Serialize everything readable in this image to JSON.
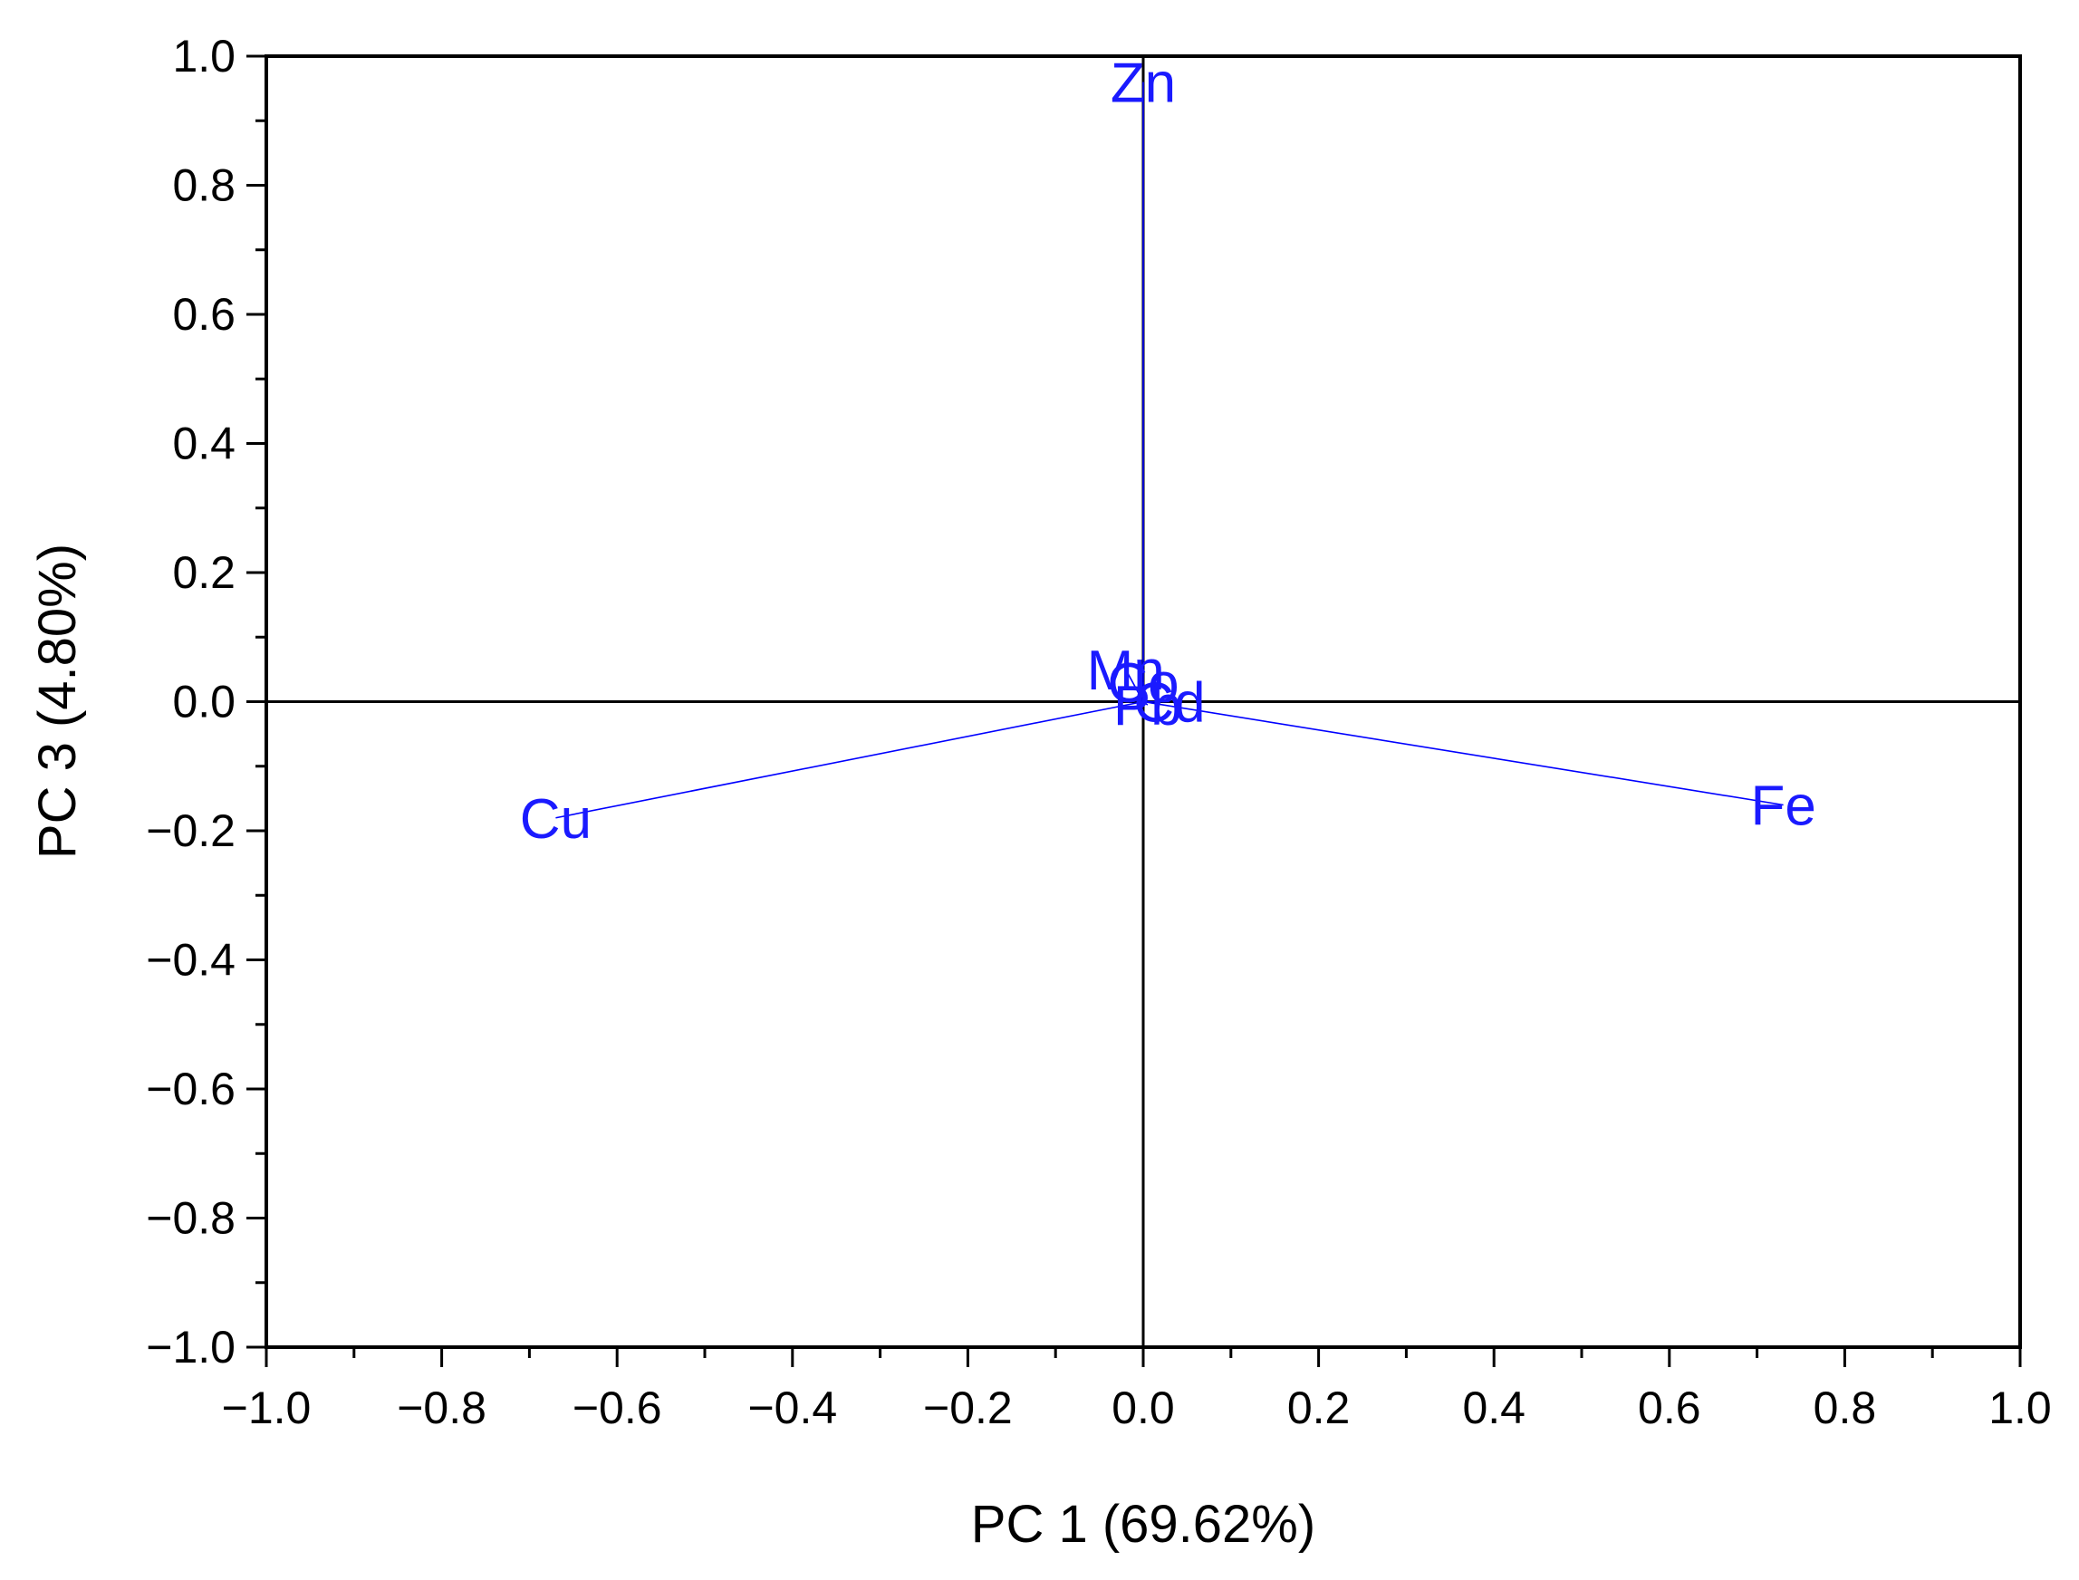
{
  "chart_data": {
    "type": "scatter",
    "subtype": "pca-loading-biplot",
    "title": "",
    "xlabel": "PC 1 (69.62%)",
    "ylabel": "PC 3 (4.80%)",
    "xlim": [
      -1.0,
      1.0
    ],
    "ylim": [
      -1.0,
      1.0
    ],
    "x_ticks": [
      "−1.0",
      "−0.8",
      "−0.6",
      "−0.4",
      "−0.2",
      "0.0",
      "0.2",
      "0.4",
      "0.6",
      "0.8",
      "1.0"
    ],
    "y_ticks": [
      "1.0",
      "0.8",
      "0.6",
      "0.4",
      "0.2",
      "0.0",
      "−0.2",
      "−0.4",
      "−0.6",
      "−0.8",
      "−1.0"
    ],
    "grid": false,
    "zero_lines": true,
    "vector_color": "#0000ff",
    "label_color": "#1a1aff",
    "axis_color": "#000000",
    "points": [
      {
        "label": "Zn",
        "x": 0.0,
        "y": 0.96
      },
      {
        "label": "Cu",
        "x": -0.67,
        "y": -0.18
      },
      {
        "label": "Fe",
        "x": 0.73,
        "y": -0.16
      },
      {
        "label": "Mn",
        "x": -0.02,
        "y": 0.05
      },
      {
        "label": "Co",
        "x": 0.0,
        "y": 0.03
      },
      {
        "label": "Cd",
        "x": 0.03,
        "y": 0.0
      },
      {
        "label": "Pb",
        "x": 0.005,
        "y": -0.005
      }
    ]
  }
}
